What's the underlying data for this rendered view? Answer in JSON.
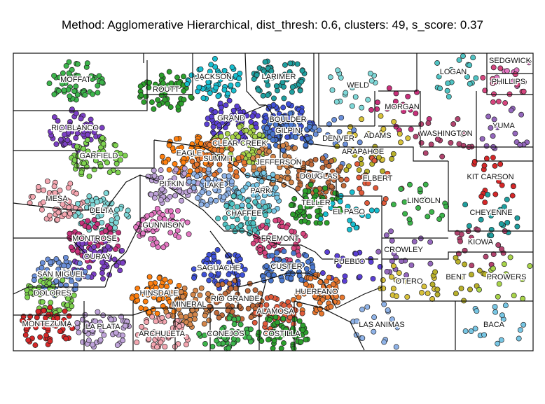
{
  "title": "Method: Agglomerative Hierarchical, dist_thresh: 0.6, clusters: 49, s_score: 0.37",
  "map": {
    "region": "Colorado",
    "cluster_colors": [
      "#3cb44b",
      "#2ca02c",
      "#17becf",
      "#1f9f9f",
      "#7fd8d8",
      "#4fc3c3",
      "#e377c2",
      "#d6457e",
      "#c7307a",
      "#b1446e",
      "#9467bd",
      "#7b3fc4",
      "#5a3fd4",
      "#3f51d8",
      "#4a78d0",
      "#6a8fd9",
      "#d8c23a",
      "#b8b02a",
      "#a8d44a",
      "#7ed34f",
      "#ff7f0e",
      "#e8772e",
      "#d4864a",
      "#c06a3a",
      "#e05a3a",
      "#d62728",
      "#bfa3d9",
      "#8fb3e8",
      "#77c6e4",
      "#f4a6b0"
    ],
    "counties": [
      {
        "name": "MOFFAT"
      },
      {
        "name": "ROUTT"
      },
      {
        "name": "JACKSON"
      },
      {
        "name": "LARIMER"
      },
      {
        "name": "WELD"
      },
      {
        "name": "LOGAN"
      },
      {
        "name": "SEDGWICK"
      },
      {
        "name": "PHILLIPS"
      },
      {
        "name": "MORGAN"
      },
      {
        "name": "WASHINGTON"
      },
      {
        "name": "YUMA"
      },
      {
        "name": "RIO BLANCO"
      },
      {
        "name": "GRAND"
      },
      {
        "name": "BOULDER"
      },
      {
        "name": "GILPIN"
      },
      {
        "name": "DENVER"
      },
      {
        "name": "ADAMS"
      },
      {
        "name": "ARAPAHOE"
      },
      {
        "name": "CLEAR CREEK"
      },
      {
        "name": "GARFIELD"
      },
      {
        "name": "EAGLE"
      },
      {
        "name": "SUMMIT"
      },
      {
        "name": "JEFFERSON"
      },
      {
        "name": "DOUGLAS"
      },
      {
        "name": "ELBERT"
      },
      {
        "name": "KIT CARSON"
      },
      {
        "name": "PITKIN"
      },
      {
        "name": "LAKE"
      },
      {
        "name": "PARK"
      },
      {
        "name": "MESA"
      },
      {
        "name": "LINCOLN"
      },
      {
        "name": "TELLER"
      },
      {
        "name": "EL PASO"
      },
      {
        "name": "CHEYENNE"
      },
      {
        "name": "DELTA"
      },
      {
        "name": "CHAFFEE"
      },
      {
        "name": "GUNNISON"
      },
      {
        "name": "FREMONT"
      },
      {
        "name": "MONTROSE"
      },
      {
        "name": "KIOWA"
      },
      {
        "name": "CROWLEY"
      },
      {
        "name": "OURAY"
      },
      {
        "name": "PUEBLO"
      },
      {
        "name": "SAGUACHE"
      },
      {
        "name": "CUSTER"
      },
      {
        "name": "SAN MIGUEL"
      },
      {
        "name": "OTERO"
      },
      {
        "name": "BENT"
      },
      {
        "name": "PROWERS"
      },
      {
        "name": "DOLORES"
      },
      {
        "name": "HINSDALE"
      },
      {
        "name": "HUERFANO"
      },
      {
        "name": "MINERAL"
      },
      {
        "name": "RIO GRANDE"
      },
      {
        "name": "ALAMOSA"
      },
      {
        "name": "MONTEZUMA"
      },
      {
        "name": "LA PLATA"
      },
      {
        "name": "LAS ANIMAS"
      },
      {
        "name": "BACA"
      },
      {
        "name": "ARCHULETA"
      },
      {
        "name": "CONEJOS"
      },
      {
        "name": "COSTILLA"
      }
    ]
  }
}
